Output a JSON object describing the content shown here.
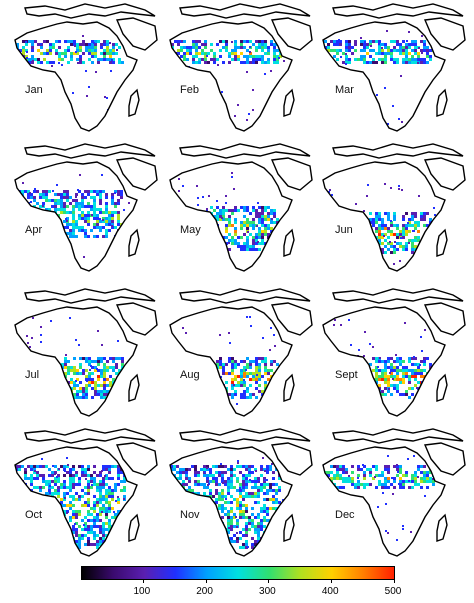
{
  "panels": [
    {
      "month": "Jan",
      "band": "north"
    },
    {
      "month": "Feb",
      "band": "north"
    },
    {
      "month": "Mar",
      "band": "north"
    },
    {
      "month": "Apr",
      "band": "equator"
    },
    {
      "month": "May",
      "band": "central"
    },
    {
      "month": "Jun",
      "band": "south"
    },
    {
      "month": "Jul",
      "band": "south"
    },
    {
      "month": "Aug",
      "band": "south"
    },
    {
      "month": "Sept",
      "band": "south"
    },
    {
      "month": "Oct",
      "band": "mixed"
    },
    {
      "month": "Nov",
      "band": "mixed"
    },
    {
      "month": "Dec",
      "band": "north"
    }
  ],
  "colorbar": {
    "ticks": [
      "100",
      "200",
      "300",
      "400",
      "500"
    ],
    "range": [
      0,
      500
    ],
    "colors": [
      "#000000",
      "#3a0a6e",
      "#5a1fb0",
      "#2030ff",
      "#00a0ff",
      "#00e0e0",
      "#30e070",
      "#b0e020",
      "#ffd000",
      "#ff8000",
      "#ff2000"
    ]
  }
}
